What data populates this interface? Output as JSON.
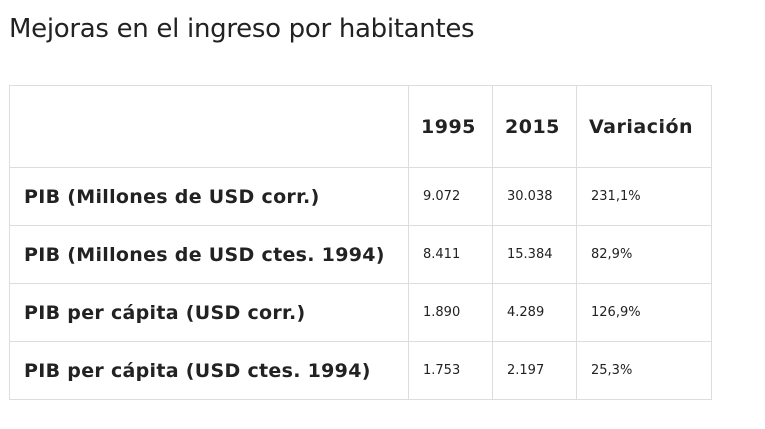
{
  "title": "Mejoras en el ingreso por habitantes",
  "table": {
    "headers": [
      "",
      "1995",
      "2015",
      "Variación"
    ],
    "rows": [
      {
        "label": "PIB (Millones de USD corr.)",
        "y1995": "9.072",
        "y2015": "30.038",
        "variacion": "231,1%"
      },
      {
        "label": "PIB (Millones de USD ctes. 1994)",
        "y1995": "8.411",
        "y2015": "15.384",
        "variacion": "82,9%"
      },
      {
        "label": "PIB per cápita (USD corr.)",
        "y1995": "1.890",
        "y2015": "4.289",
        "variacion": "126,9%"
      },
      {
        "label": "PIB per cápita (USD ctes. 1994)",
        "y1995": "1.753",
        "y2015": "2.197",
        "variacion": "25,3%"
      }
    ]
  }
}
